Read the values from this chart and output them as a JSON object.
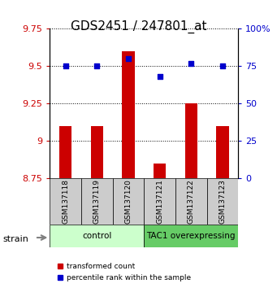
{
  "title": "GDS2451 / 247801_at",
  "samples": [
    "GSM137118",
    "GSM137119",
    "GSM137120",
    "GSM137121",
    "GSM137122",
    "GSM137123"
  ],
  "transformed_counts": [
    9.1,
    9.1,
    9.6,
    8.85,
    9.25,
    9.1
  ],
  "percentile_ranks": [
    75,
    75,
    80,
    68,
    77,
    75
  ],
  "ylim_left": [
    8.75,
    9.75
  ],
  "ylim_right": [
    0,
    100
  ],
  "yticks_left": [
    8.75,
    9.0,
    9.25,
    9.5,
    9.75
  ],
  "yticks_right": [
    0,
    25,
    50,
    75,
    100
  ],
  "ytick_labels_left": [
    "8.75",
    "9",
    "9.25",
    "9.5",
    "9.75"
  ],
  "ytick_labels_right": [
    "0",
    "25",
    "50",
    "75",
    "100%"
  ],
  "bar_color": "#cc0000",
  "dot_color": "#0000cc",
  "bar_width": 0.4,
  "groups": [
    {
      "label": "control",
      "indices": [
        0,
        1,
        2
      ],
      "color": "#ccffcc"
    },
    {
      "label": "TAC1 overexpressing",
      "indices": [
        3,
        4,
        5
      ],
      "color": "#66cc66"
    }
  ],
  "strain_label": "strain",
  "legend_bar_label": "transformed count",
  "legend_dot_label": "percentile rank within the sample",
  "grid_color": "#000000",
  "grid_style": "dotted",
  "sample_box_color": "#cccccc",
  "title_fontsize": 11,
  "axis_label_color_left": "#cc0000",
  "axis_label_color_right": "#0000cc"
}
